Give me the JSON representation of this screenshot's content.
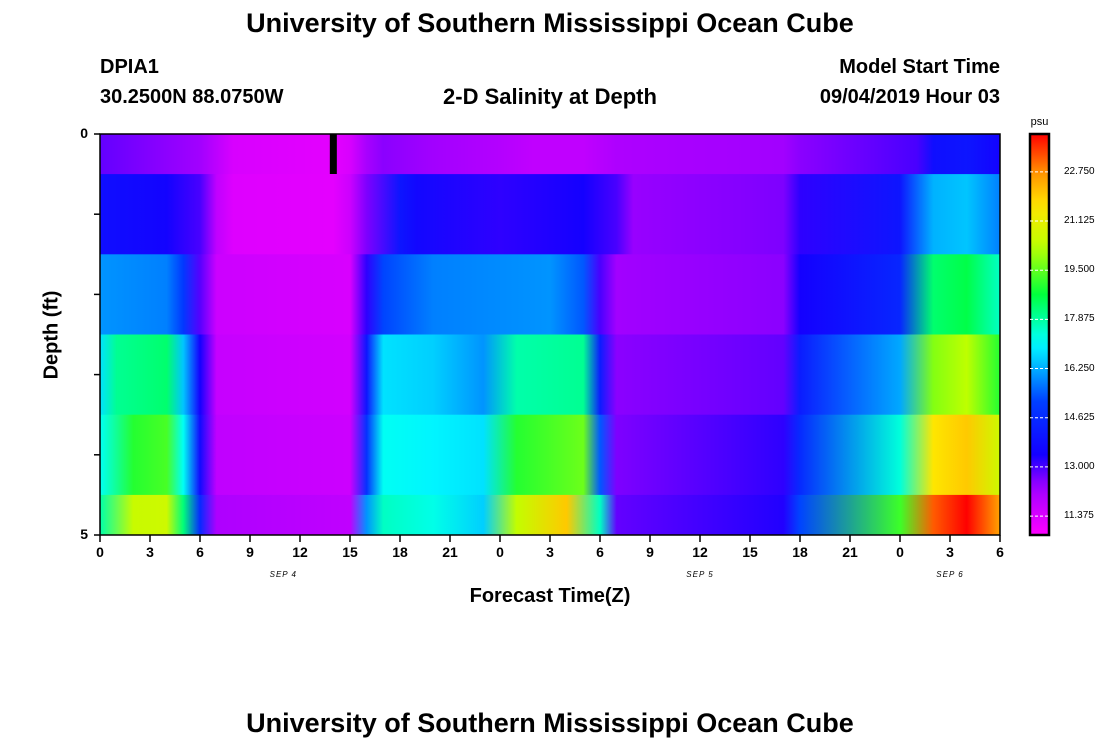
{
  "header": {
    "title": "University of Southern Mississippi Ocean Cube",
    "station": "DPIA1",
    "location": "30.2500N 88.0750W",
    "subtitle": "2-D Salinity at Depth",
    "model_label": "Model Start Time",
    "model_time": "09/04/2019 Hour 03"
  },
  "footer": {
    "title": "University of Southern Mississippi Ocean Cube"
  },
  "chart_data": {
    "type": "heatmap",
    "title": "2-D Salinity at Depth",
    "xlabel": "Forecast Time(Z)",
    "ylabel": "Depth (ft)",
    "x_range": [
      0,
      54
    ],
    "y_range": [
      0,
      5
    ],
    "x_ticks": [
      "0",
      "3",
      "6",
      "9",
      "12",
      "15",
      "18",
      "21",
      "0",
      "3",
      "6",
      "9",
      "12",
      "15",
      "18",
      "21",
      "0",
      "3",
      "6"
    ],
    "y_ticks": [
      "0",
      "5"
    ],
    "date_labels": [
      {
        "label": "SEP 4",
        "hour": 11
      },
      {
        "label": "SEP 5",
        "hour": 36
      },
      {
        "label": "SEP 6",
        "hour": 51
      }
    ],
    "marker_hour": 14,
    "colorbar": {
      "unit": "psu",
      "min": 10.75,
      "max": 24.0,
      "ticks": [
        "22.750",
        "21.125",
        "19.500",
        "17.875",
        "16.250",
        "14.625",
        "13.000",
        "11.375"
      ]
    },
    "layers": [
      {
        "depth": "0-0.5 ft",
        "points": [
          [
            0,
            12.8
          ],
          [
            6,
            12.3
          ],
          [
            8,
            11.4
          ],
          [
            14,
            11.2
          ],
          [
            15,
            11.4
          ],
          [
            16,
            12.2
          ],
          [
            17,
            12.5
          ],
          [
            20,
            12.3
          ],
          [
            24,
            12.0
          ],
          [
            26,
            11.8
          ],
          [
            29,
            11.8
          ],
          [
            31,
            12.1
          ],
          [
            35,
            12.2
          ],
          [
            41,
            12.3
          ],
          [
            42,
            12.5
          ],
          [
            49,
            13.0
          ],
          [
            50,
            13.8
          ],
          [
            52,
            14.0
          ],
          [
            54,
            13.5
          ]
        ]
      },
      {
        "depth": "0.5-1.5 ft",
        "points": [
          [
            0,
            13.8
          ],
          [
            4,
            13.5
          ],
          [
            6,
            13.0
          ],
          [
            7,
            11.8
          ],
          [
            8,
            11.3
          ],
          [
            14,
            11.2
          ],
          [
            15,
            11.6
          ],
          [
            16,
            12.6
          ],
          [
            18,
            14.0
          ],
          [
            19,
            13.6
          ],
          [
            24,
            13.2
          ],
          [
            29,
            13.4
          ],
          [
            31,
            13.0
          ],
          [
            32,
            12.4
          ],
          [
            41,
            12.6
          ],
          [
            42,
            13.2
          ],
          [
            48,
            14.0
          ],
          [
            50,
            16.3
          ],
          [
            52,
            16.5
          ],
          [
            54,
            15.8
          ]
        ]
      },
      {
        "depth": "1.5-2.5 ft",
        "points": [
          [
            0,
            16.0
          ],
          [
            4,
            15.8
          ],
          [
            5,
            15.0
          ],
          [
            6,
            12.9
          ],
          [
            7,
            11.6
          ],
          [
            15,
            11.4
          ],
          [
            16,
            13.2
          ],
          [
            17,
            15.2
          ],
          [
            20,
            15.8
          ],
          [
            27,
            16.0
          ],
          [
            29,
            15.4
          ],
          [
            30,
            13.0
          ],
          [
            31,
            12.3
          ],
          [
            41,
            12.5
          ],
          [
            42,
            13.4
          ],
          [
            48,
            14.5
          ],
          [
            50,
            18.3
          ],
          [
            52,
            18.6
          ],
          [
            54,
            17.6
          ]
        ]
      },
      {
        "depth": "2.5-3.5 ft",
        "points": [
          [
            0,
            16.8
          ],
          [
            1,
            18.0
          ],
          [
            4,
            18.3
          ],
          [
            5,
            16.5
          ],
          [
            6,
            13.4
          ],
          [
            7,
            11.7
          ],
          [
            15,
            11.5
          ],
          [
            16,
            14.0
          ],
          [
            17,
            16.8
          ],
          [
            20,
            16.6
          ],
          [
            23,
            16.0
          ],
          [
            25,
            17.8
          ],
          [
            29,
            18.0
          ],
          [
            30,
            14.2
          ],
          [
            31,
            12.5
          ],
          [
            41,
            12.8
          ],
          [
            42,
            14.2
          ],
          [
            48,
            16.2
          ],
          [
            50,
            19.8
          ],
          [
            52,
            20.3
          ],
          [
            54,
            19.0
          ]
        ]
      },
      {
        "depth": "3.5-4.5 ft",
        "points": [
          [
            0,
            17.2
          ],
          [
            2,
            19.0
          ],
          [
            4,
            19.3
          ],
          [
            5,
            17.2
          ],
          [
            6,
            13.7
          ],
          [
            7,
            11.8
          ],
          [
            15,
            11.6
          ],
          [
            16,
            14.8
          ],
          [
            17,
            17.2
          ],
          [
            20,
            17.0
          ],
          [
            23,
            16.8
          ],
          [
            25,
            19.0
          ],
          [
            29,
            19.6
          ],
          [
            30,
            15.4
          ],
          [
            31,
            12.6
          ],
          [
            41,
            13.2
          ],
          [
            42,
            14.6
          ],
          [
            48,
            17.4
          ],
          [
            50,
            21.6
          ],
          [
            52,
            22.0
          ],
          [
            54,
            20.6
          ]
        ]
      },
      {
        "depth": "4.5-5 ft",
        "points": [
          [
            0,
            17.8
          ],
          [
            2,
            20.5
          ],
          [
            4,
            20.6
          ],
          [
            5,
            18.2
          ],
          [
            6,
            14.6
          ],
          [
            7,
            12.1
          ],
          [
            15,
            11.8
          ],
          [
            16,
            16.0
          ],
          [
            17,
            17.6
          ],
          [
            20,
            17.3
          ],
          [
            23,
            16.6
          ],
          [
            25,
            20.4
          ],
          [
            28,
            22.0
          ],
          [
            30,
            17.6
          ],
          [
            31,
            12.8
          ],
          [
            41,
            13.3
          ],
          [
            42,
            15.2
          ],
          [
            48,
            19.2
          ],
          [
            50,
            23.2
          ],
          [
            52,
            24.0
          ],
          [
            54,
            22.5
          ]
        ]
      }
    ]
  }
}
